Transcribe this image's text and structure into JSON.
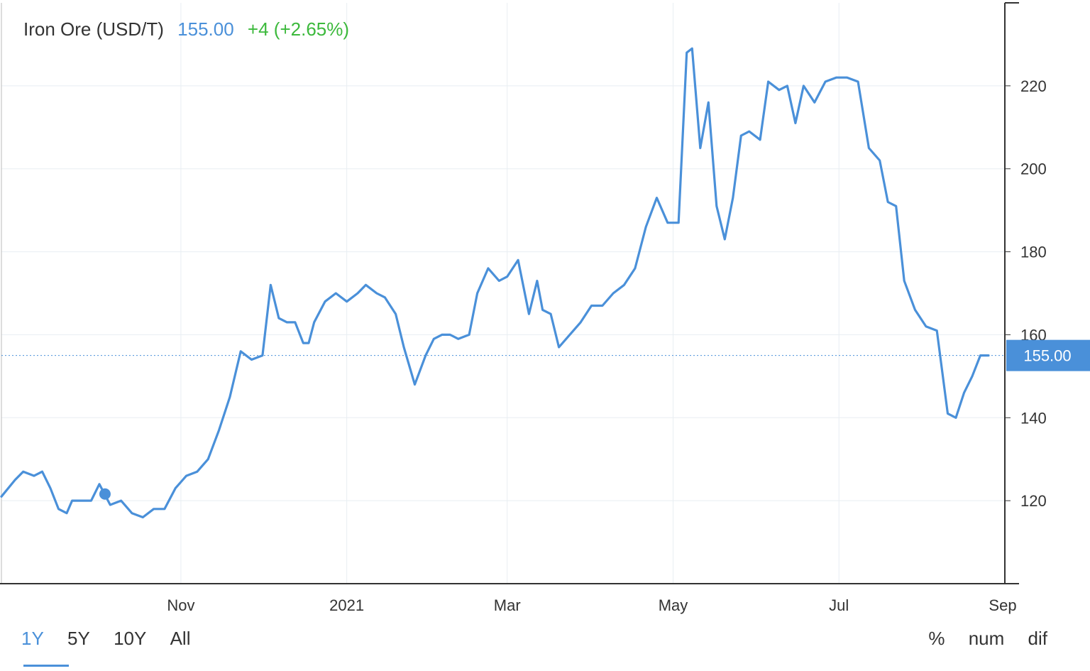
{
  "legend": {
    "name": "Iron Ore (USD/T)",
    "price": "155.00",
    "change": "+4 (+2.65%)",
    "colors": {
      "name": "#333333",
      "price": "#4a90d9",
      "change": "#3cb93c"
    }
  },
  "ranges": [
    {
      "label": "1Y",
      "active": true
    },
    {
      "label": "5Y",
      "active": false
    },
    {
      "label": "10Y",
      "active": false
    },
    {
      "label": "All",
      "active": false
    }
  ],
  "modes": [
    {
      "label": "%"
    },
    {
      "label": "num"
    },
    {
      "label": "dif"
    }
  ],
  "chart_data": {
    "type": "line",
    "series": [
      {
        "color": "#4a90d9",
        "x": [
          "2020-08-27",
          "2020-09-01",
          "2020-09-04",
          "2020-09-08",
          "2020-09-11",
          "2020-09-14",
          "2020-09-17",
          "2020-09-20",
          "2020-09-22",
          "2020-09-25",
          "2020-09-29",
          "2020-10-02",
          "2020-10-06",
          "2020-10-10",
          "2020-10-14",
          "2020-10-18",
          "2020-10-22",
          "2020-10-26",
          "2020-10-30",
          "2020-11-03",
          "2020-11-07",
          "2020-11-11",
          "2020-11-15",
          "2020-11-19",
          "2020-11-23",
          "2020-11-27",
          "2020-12-01",
          "2020-12-04",
          "2020-12-07",
          "2020-12-10",
          "2020-12-13",
          "2020-12-16",
          "2020-12-18",
          "2020-12-20",
          "2020-12-24",
          "2020-12-28",
          "2021-01-01",
          "2021-01-05",
          "2021-01-08",
          "2021-01-12",
          "2021-01-15",
          "2021-01-19",
          "2021-01-22",
          "2021-01-26",
          "2021-01-30",
          "2021-02-02",
          "2021-02-05",
          "2021-02-08",
          "2021-02-11",
          "2021-02-15",
          "2021-02-18",
          "2021-02-22",
          "2021-02-26",
          "2021-03-01",
          "2021-03-05",
          "2021-03-09",
          "2021-03-12",
          "2021-03-14",
          "2021-03-17",
          "2021-03-20",
          "2021-03-24",
          "2021-03-28",
          "2021-04-01",
          "2021-04-05",
          "2021-04-09",
          "2021-04-13",
          "2021-04-17",
          "2021-04-21",
          "2021-04-25",
          "2021-04-29",
          "2021-05-03",
          "2021-05-06",
          "2021-05-08",
          "2021-05-11",
          "2021-05-14",
          "2021-05-17",
          "2021-05-20",
          "2021-05-23",
          "2021-05-26",
          "2021-05-29",
          "2021-06-02",
          "2021-06-05",
          "2021-06-09",
          "2021-06-12",
          "2021-06-15",
          "2021-06-18",
          "2021-06-22",
          "2021-06-26",
          "2021-06-30",
          "2021-07-04",
          "2021-07-08",
          "2021-07-12",
          "2021-07-16",
          "2021-07-19",
          "2021-07-22",
          "2021-07-25",
          "2021-07-29",
          "2021-08-02",
          "2021-08-06",
          "2021-08-10",
          "2021-08-13",
          "2021-08-16",
          "2021-08-19",
          "2021-08-22",
          "2021-08-25"
        ],
        "y": [
          121,
          125,
          127,
          126,
          127,
          123,
          118,
          117,
          120,
          120,
          120,
          124,
          119,
          120,
          117,
          116,
          118,
          118,
          123,
          126,
          127,
          130,
          137,
          145,
          156,
          154,
          155,
          172,
          164,
          163,
          163,
          158,
          158,
          163,
          168,
          170,
          168,
          170,
          172,
          170,
          169,
          165,
          157,
          148,
          155,
          159,
          160,
          160,
          159,
          160,
          170,
          176,
          173,
          174,
          178,
          165,
          173,
          166,
          165,
          157,
          160,
          163,
          167,
          167,
          170,
          172,
          176,
          186,
          193,
          187,
          187,
          228,
          229,
          205,
          216,
          191,
          183,
          193,
          208,
          209,
          207,
          221,
          219,
          220,
          211,
          220,
          216,
          221,
          222,
          222,
          221,
          205,
          202,
          192,
          191,
          173,
          166,
          162,
          161,
          141,
          140,
          146,
          150,
          155,
          155
        ]
      }
    ],
    "x_ticks": [
      "Nov",
      "2021",
      "Mar",
      "May",
      "Jul",
      "Sep"
    ],
    "y_ticks": [
      120,
      140,
      160,
      180,
      200,
      220
    ],
    "ylim": [
      100,
      240
    ],
    "last_value_label": "155.00",
    "reference_line": 155,
    "grid": true,
    "y_axis_side": "right"
  }
}
